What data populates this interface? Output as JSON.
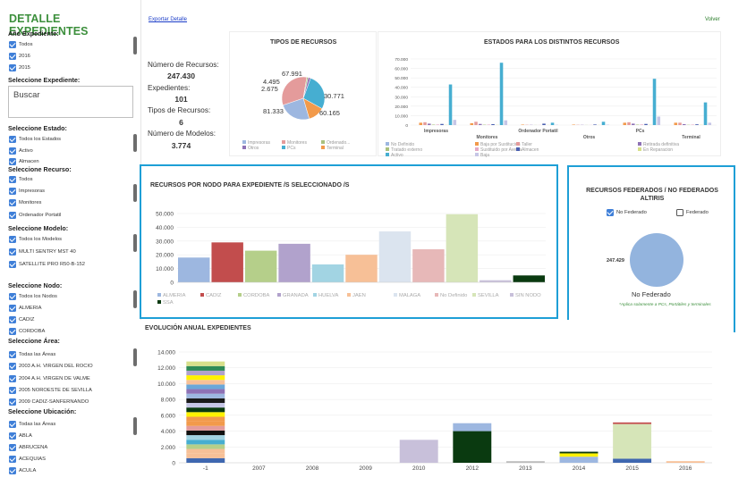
{
  "sidebar": {
    "title": "DETALLE EXPEDIENTES",
    "year_header": "Año Expediente:",
    "years": [
      "Todos",
      "2016",
      "2015"
    ],
    "search_header": "Seleccione Expediente:",
    "search_placeholder": "Buscar",
    "estado_header": "Seleccione Estado:",
    "estados": [
      "Todos los Estados",
      "Activo",
      "Almacen"
    ],
    "recurso_header": "Seleccione Recurso:",
    "recursos": [
      "Todos",
      "Impresoras",
      "Monitores",
      "Ordenador Portatil"
    ],
    "modelo_header": "Seleccione Modelo:",
    "modelos": [
      "Todos los Modelos",
      "MULTI SENTRY MST 40",
      "SATELLITE PRO R50-B-152"
    ],
    "nodo_header": "Seleccione Nodo:",
    "nodos": [
      "Todos los Nodos",
      "ALMERIA",
      "CADIZ",
      "CORDOBA"
    ],
    "area_header": "Seleccione Área:",
    "areas": [
      "Todas las Áreas",
      "2003 A.H. VIRGEN DEL ROCIO",
      "2004 A.H. VIRGEN DE VALME",
      "2005 NOROESTE DE SEVILLA",
      "2009 CADIZ-SANFERNANDO"
    ],
    "ubicacion_header": "Seleccione Ubicación:",
    "ubicaciones": [
      "Todas las Áreas",
      "ABLA",
      "ABRUCENA",
      "ACEQUIAS",
      "ACULA"
    ]
  },
  "header": {
    "export_label": "Exportar Detalle",
    "back_label": "Volver"
  },
  "stats": {
    "num_recursos_label": "Número de Recursos:",
    "num_recursos_value": "247.430",
    "expedientes_label": "Expedientes:",
    "expedientes_value": "101",
    "tipos_label": "Tipos de Recursos:",
    "tipos_value": "6",
    "modelos_label": "Número de Modelos:",
    "modelos_value": "3.774"
  },
  "colors": {
    "accent_green": "#3c8f3c",
    "panel_border": "#1e9fd6",
    "link_blue": "#1a3cc8"
  },
  "chart_data": [
    {
      "type": "pie",
      "title": "TIPOS DE RECURSOS",
      "categories": [
        "Impresoras",
        "Monitores",
        "Ordenador Portatil",
        "Otros",
        "PCs",
        "Terminal"
      ],
      "values": [
        60165,
        81333,
        2675,
        4495,
        67991,
        30771
      ],
      "value_labels": [
        "60.165",
        "81.333",
        "2.675",
        "4.495",
        "67.991",
        "30.771"
      ],
      "legend": [
        "Impresoras",
        "Monitores",
        "Ordenado...",
        "Otros",
        "PCs",
        "Terminal"
      ],
      "colors": [
        "#9db7e0",
        "#e49b9b",
        "#a9c07d",
        "#8e72b5",
        "#46aed1",
        "#f29a4b"
      ]
    },
    {
      "type": "bar",
      "title": "ESTADOS PARA LOS DISTINTOS RECURSOS",
      "categories": [
        "Impresoras",
        "Monitores",
        "Ordenador Portatil",
        "Otros",
        "PCs",
        "Terminal"
      ],
      "ylim": [
        0,
        70000
      ],
      "yticks": [
        "0",
        "10.000",
        "20.000",
        "30.000",
        "40.000",
        "50.000",
        "60.000",
        "70.000"
      ],
      "series": [
        {
          "name": "No Definido",
          "color": "#9db7e0",
          "values": [
            0,
            0,
            0,
            0,
            0,
            0
          ]
        },
        {
          "name": "Baja por Sustitución",
          "color": "#f29a4b",
          "values": [
            2500,
            2000,
            500,
            500,
            2500,
            2500
          ]
        },
        {
          "name": "Taller",
          "color": "#e49b9b",
          "values": [
            3000,
            3500,
            300,
            300,
            3000,
            2500
          ]
        },
        {
          "name": "Retirada definitiva",
          "color": "#8e72b5",
          "values": [
            1500,
            1200,
            200,
            200,
            1500,
            1000
          ]
        },
        {
          "name": "Tratado externo",
          "color": "#a9c07d",
          "values": [
            500,
            400,
            100,
            100,
            500,
            300
          ]
        },
        {
          "name": "Sustituido por Avería",
          "color": "#e4a9c6",
          "values": [
            600,
            500,
            100,
            100,
            600,
            500
          ]
        },
        {
          "name": "Almacen",
          "color": "#4a5fb0",
          "values": [
            1200,
            1000,
            1500,
            600,
            1200,
            800
          ]
        },
        {
          "name": "En Reparacion",
          "color": "#d7e08a",
          "values": [
            200,
            200,
            100,
            100,
            200,
            200
          ]
        },
        {
          "name": "Activo",
          "color": "#46aed1",
          "values": [
            43000,
            66000,
            2500,
            3500,
            49000,
            24000
          ]
        },
        {
          "name": "Baja",
          "color": "#c6c6e6",
          "values": [
            5500,
            5000,
            300,
            400,
            9000,
            2500
          ]
        }
      ]
    },
    {
      "type": "bar",
      "title": "RECURSOS POR NODO PARA EXPEDIENTE /S SELECCIONADO /S",
      "categories": [
        "ALMERIA",
        "CADIZ",
        "CORDOBA",
        "GRANADA",
        "HUELVA",
        "JAEN",
        "MALAGA",
        "No Definido",
        "SEVILLA",
        "SIN NODO",
        "SSA"
      ],
      "values": [
        18000,
        29000,
        23000,
        28000,
        13000,
        20000,
        37000,
        24000,
        49500,
        1500,
        5000
      ],
      "colors": [
        "#9db7e0",
        "#c24d4d",
        "#b5cf8a",
        "#b1a2cc",
        "#a2d4e3",
        "#f7c097",
        "#dbe4ef",
        "#e7b8b8",
        "#d6e5b8",
        "#c8c0da",
        "#0a3a10"
      ],
      "ylim": [
        0,
        50000
      ],
      "yticks": [
        "0",
        "10.000",
        "20.000",
        "30.000",
        "40.000",
        "50.000"
      ]
    },
    {
      "type": "pie",
      "title": "RECURSOS FEDERADOS / NO FEDERADOS ALTIRIS",
      "categories": [
        "No Federado",
        "Federado"
      ],
      "values": [
        247429,
        0
      ],
      "value_label": "247.429",
      "slice_label": "No Federado",
      "note": "*Aplica solamente a PCs, Portátiles y terminales",
      "checkbox_no_federado": "No Federado",
      "checkbox_federado": "Federado",
      "colors": [
        "#93b4de"
      ]
    },
    {
      "type": "bar",
      "title": "EVOLUCIÓN ANUAL EXPEDIENTES",
      "categories": [
        "-1",
        "2007",
        "2008",
        "2009",
        "2010",
        "2012",
        "2013",
        "2014",
        "2015",
        "2016"
      ],
      "values": [
        12800,
        0,
        0,
        0,
        2900,
        5000,
        200,
        1400,
        5100,
        200
      ],
      "ylim": [
        0,
        14000
      ],
      "yticks": [
        "0",
        "2.000",
        "4.000",
        "6.000",
        "8.000",
        "10.000",
        "12.000",
        "14.000"
      ]
    }
  ]
}
